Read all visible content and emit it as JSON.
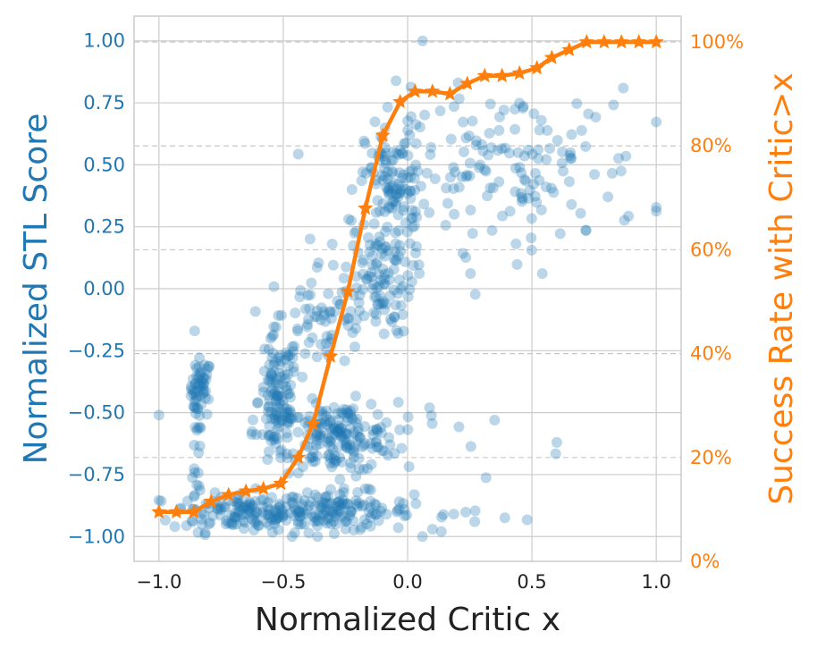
{
  "chart_data": {
    "type": "scatter",
    "title": "",
    "xlabel": "Normalized Critic x",
    "ylabel": "Normalized STL Score",
    "y2label": "Success Rate with Critic>x",
    "xlim": [
      -1.1,
      1.1
    ],
    "ylim": [
      -1.1,
      1.1
    ],
    "y2lim": [
      0,
      105
    ],
    "grid": true,
    "colors": {
      "scatter": "#1f77b4",
      "line": "#ff7f0e",
      "grid": "#cccccc",
      "dashed": "#c8c8c8"
    },
    "x_ticks": [
      -1.0,
      -0.5,
      0.0,
      0.5,
      1.0
    ],
    "x_tick_labels": [
      "−1.0",
      "−0.5",
      "0.0",
      "0.5",
      "1.0"
    ],
    "y_ticks": [
      1.0,
      0.75,
      0.5,
      0.25,
      0.0,
      -0.25,
      -0.5,
      -0.75,
      -1.0
    ],
    "y_tick_labels": [
      "1.00",
      "0.75",
      "0.50",
      "0.25",
      "0.00",
      "−0.25",
      "−0.50",
      "−0.75",
      "−1.00"
    ],
    "y2_ticks": [
      100,
      80,
      60,
      40,
      20,
      0
    ],
    "y2_tick_labels": [
      "100%",
      "80%",
      "60%",
      "40%",
      "20%",
      "0%"
    ],
    "y2_dashed_gridlines": [
      100,
      80,
      60,
      40,
      20
    ],
    "scatter_clusters": [
      {
        "cx": -0.83,
        "cy": -0.4,
        "sx": 0.02,
        "sy": 0.06,
        "n": 45
      },
      {
        "cx": -0.85,
        "cy": -0.62,
        "sx": 0.01,
        "sy": 0.18,
        "n": 28
      },
      {
        "cx": -0.67,
        "cy": -0.9,
        "sx": 0.14,
        "sy": 0.04,
        "n": 120
      },
      {
        "cx": -0.3,
        "cy": -0.9,
        "sx": 0.16,
        "sy": 0.04,
        "n": 150
      },
      {
        "cx": -0.52,
        "cy": -0.45,
        "sx": 0.04,
        "sy": 0.14,
        "n": 120
      },
      {
        "cx": -0.28,
        "cy": -0.6,
        "sx": 0.12,
        "sy": 0.07,
        "n": 180
      },
      {
        "cx": -0.35,
        "cy": -0.12,
        "sx": 0.09,
        "sy": 0.12,
        "n": 60
      },
      {
        "cx": -0.12,
        "cy": 0.05,
        "sx": 0.07,
        "sy": 0.12,
        "n": 110
      },
      {
        "cx": -0.05,
        "cy": 0.42,
        "sx": 0.06,
        "sy": 0.12,
        "n": 100
      },
      {
        "cx": 0.4,
        "cy": 0.48,
        "sx": 0.28,
        "sy": 0.16,
        "n": 160
      },
      {
        "cx": 0.2,
        "cy": -0.6,
        "sx": 0.22,
        "sy": 0.08,
        "n": 10
      },
      {
        "cx": 0.22,
        "cy": -0.9,
        "sx": 0.1,
        "sy": 0.03,
        "n": 6
      }
    ],
    "series": [
      {
        "name": "Success Rate with Critic>x",
        "axis": "right",
        "marker": "star",
        "x": [
          -1.0,
          -0.93,
          -0.86,
          -0.79,
          -0.72,
          -0.65,
          -0.58,
          -0.51,
          -0.44,
          -0.38,
          -0.31,
          -0.24,
          -0.17,
          -0.1,
          -0.03,
          0.03,
          0.1,
          0.17,
          0.24,
          0.31,
          0.38,
          0.45,
          0.52,
          0.58,
          0.65,
          0.72,
          0.79,
          0.86,
          0.93,
          1.0
        ],
        "y": [
          9.5,
          9.5,
          9.5,
          11.5,
          12.8,
          13.5,
          14.0,
          15.0,
          20.0,
          26.5,
          39.5,
          52.0,
          68.0,
          82.0,
          88.5,
          90.5,
          90.5,
          90.0,
          92.0,
          93.5,
          93.5,
          94.0,
          95.0,
          97.0,
          98.5,
          100.0,
          100.0,
          100.0,
          100.0,
          100.0
        ]
      }
    ],
    "extra_points": [
      {
        "x": 0.06,
        "y": 1.0
      },
      {
        "x": -1.0,
        "y": -0.51
      },
      {
        "x": 0.35,
        "y": -0.53
      },
      {
        "x": 0.6,
        "y": -0.62
      },
      {
        "x": 0.1,
        "y": -0.97
      },
      {
        "x": 0.27,
        "y": -0.94
      }
    ]
  }
}
